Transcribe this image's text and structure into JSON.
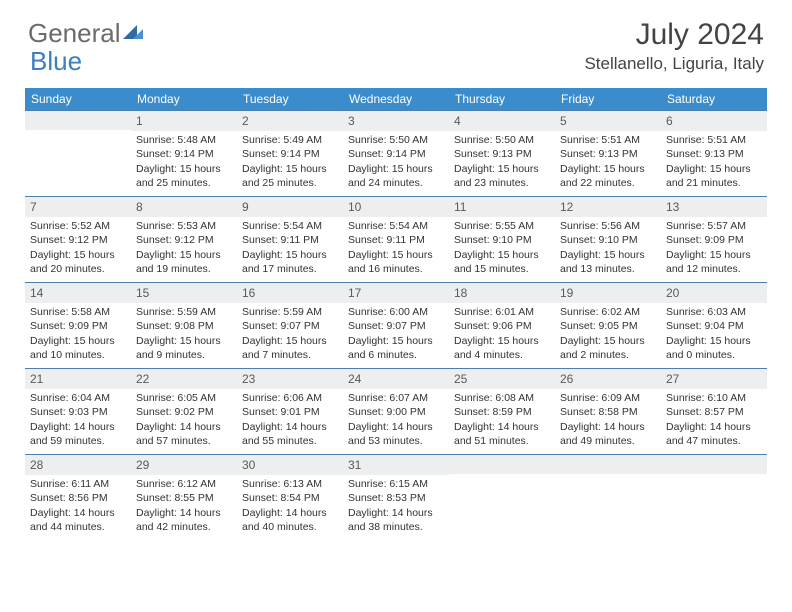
{
  "logo": {
    "part1": "General",
    "part2": "Blue"
  },
  "title": "July 2024",
  "location": "Stellanello, Liguria, Italy",
  "colors": {
    "header_bg": "#3b8ccc",
    "header_text": "#ffffff",
    "daynum_bg": "#eceef0",
    "row_border": "#4a7fae",
    "logo_gray": "#6b6b6b",
    "logo_blue": "#3b7fbf"
  },
  "weekdays": [
    "Sunday",
    "Monday",
    "Tuesday",
    "Wednesday",
    "Thursday",
    "Friday",
    "Saturday"
  ],
  "weeks": [
    [
      null,
      {
        "n": "1",
        "sr": "5:48 AM",
        "ss": "9:14 PM",
        "dl": "15 hours and 25 minutes."
      },
      {
        "n": "2",
        "sr": "5:49 AM",
        "ss": "9:14 PM",
        "dl": "15 hours and 25 minutes."
      },
      {
        "n": "3",
        "sr": "5:50 AM",
        "ss": "9:14 PM",
        "dl": "15 hours and 24 minutes."
      },
      {
        "n": "4",
        "sr": "5:50 AM",
        "ss": "9:13 PM",
        "dl": "15 hours and 23 minutes."
      },
      {
        "n": "5",
        "sr": "5:51 AM",
        "ss": "9:13 PM",
        "dl": "15 hours and 22 minutes."
      },
      {
        "n": "6",
        "sr": "5:51 AM",
        "ss": "9:13 PM",
        "dl": "15 hours and 21 minutes."
      }
    ],
    [
      {
        "n": "7",
        "sr": "5:52 AM",
        "ss": "9:12 PM",
        "dl": "15 hours and 20 minutes."
      },
      {
        "n": "8",
        "sr": "5:53 AM",
        "ss": "9:12 PM",
        "dl": "15 hours and 19 minutes."
      },
      {
        "n": "9",
        "sr": "5:54 AM",
        "ss": "9:11 PM",
        "dl": "15 hours and 17 minutes."
      },
      {
        "n": "10",
        "sr": "5:54 AM",
        "ss": "9:11 PM",
        "dl": "15 hours and 16 minutes."
      },
      {
        "n": "11",
        "sr": "5:55 AM",
        "ss": "9:10 PM",
        "dl": "15 hours and 15 minutes."
      },
      {
        "n": "12",
        "sr": "5:56 AM",
        "ss": "9:10 PM",
        "dl": "15 hours and 13 minutes."
      },
      {
        "n": "13",
        "sr": "5:57 AM",
        "ss": "9:09 PM",
        "dl": "15 hours and 12 minutes."
      }
    ],
    [
      {
        "n": "14",
        "sr": "5:58 AM",
        "ss": "9:09 PM",
        "dl": "15 hours and 10 minutes."
      },
      {
        "n": "15",
        "sr": "5:59 AM",
        "ss": "9:08 PM",
        "dl": "15 hours and 9 minutes."
      },
      {
        "n": "16",
        "sr": "5:59 AM",
        "ss": "9:07 PM",
        "dl": "15 hours and 7 minutes."
      },
      {
        "n": "17",
        "sr": "6:00 AM",
        "ss": "9:07 PM",
        "dl": "15 hours and 6 minutes."
      },
      {
        "n": "18",
        "sr": "6:01 AM",
        "ss": "9:06 PM",
        "dl": "15 hours and 4 minutes."
      },
      {
        "n": "19",
        "sr": "6:02 AM",
        "ss": "9:05 PM",
        "dl": "15 hours and 2 minutes."
      },
      {
        "n": "20",
        "sr": "6:03 AM",
        "ss": "9:04 PM",
        "dl": "15 hours and 0 minutes."
      }
    ],
    [
      {
        "n": "21",
        "sr": "6:04 AM",
        "ss": "9:03 PM",
        "dl": "14 hours and 59 minutes."
      },
      {
        "n": "22",
        "sr": "6:05 AM",
        "ss": "9:02 PM",
        "dl": "14 hours and 57 minutes."
      },
      {
        "n": "23",
        "sr": "6:06 AM",
        "ss": "9:01 PM",
        "dl": "14 hours and 55 minutes."
      },
      {
        "n": "24",
        "sr": "6:07 AM",
        "ss": "9:00 PM",
        "dl": "14 hours and 53 minutes."
      },
      {
        "n": "25",
        "sr": "6:08 AM",
        "ss": "8:59 PM",
        "dl": "14 hours and 51 minutes."
      },
      {
        "n": "26",
        "sr": "6:09 AM",
        "ss": "8:58 PM",
        "dl": "14 hours and 49 minutes."
      },
      {
        "n": "27",
        "sr": "6:10 AM",
        "ss": "8:57 PM",
        "dl": "14 hours and 47 minutes."
      }
    ],
    [
      {
        "n": "28",
        "sr": "6:11 AM",
        "ss": "8:56 PM",
        "dl": "14 hours and 44 minutes."
      },
      {
        "n": "29",
        "sr": "6:12 AM",
        "ss": "8:55 PM",
        "dl": "14 hours and 42 minutes."
      },
      {
        "n": "30",
        "sr": "6:13 AM",
        "ss": "8:54 PM",
        "dl": "14 hours and 40 minutes."
      },
      {
        "n": "31",
        "sr": "6:15 AM",
        "ss": "8:53 PM",
        "dl": "14 hours and 38 minutes."
      },
      null,
      null,
      null
    ]
  ],
  "labels": {
    "sunrise": "Sunrise:",
    "sunset": "Sunset:",
    "daylight": "Daylight:"
  }
}
